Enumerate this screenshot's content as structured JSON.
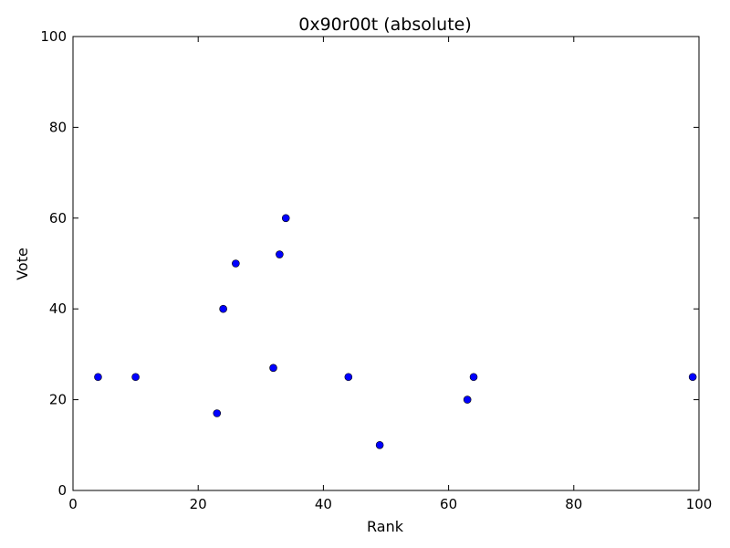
{
  "chart_data": {
    "type": "scatter",
    "title": "0x90r00t (absolute)",
    "xlabel": "Rank",
    "ylabel": "Vote",
    "xlim": [
      0,
      100
    ],
    "ylim": [
      0,
      100
    ],
    "xticks": [
      0,
      20,
      40,
      60,
      80,
      100
    ],
    "yticks": [
      0,
      20,
      40,
      60,
      80,
      100
    ],
    "grid": false,
    "marker_color": "#0000ff",
    "points": [
      {
        "x": 4,
        "y": 25
      },
      {
        "x": 10,
        "y": 25
      },
      {
        "x": 23,
        "y": 17
      },
      {
        "x": 24,
        "y": 40
      },
      {
        "x": 26,
        "y": 50
      },
      {
        "x": 32,
        "y": 27
      },
      {
        "x": 33,
        "y": 52
      },
      {
        "x": 34,
        "y": 60
      },
      {
        "x": 44,
        "y": 25
      },
      {
        "x": 49,
        "y": 10
      },
      {
        "x": 63,
        "y": 20
      },
      {
        "x": 64,
        "y": 25
      },
      {
        "x": 99,
        "y": 25
      }
    ]
  }
}
